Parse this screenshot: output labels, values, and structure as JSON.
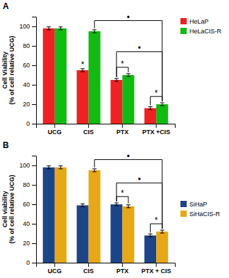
{
  "chart_data": [
    {
      "type": "bar",
      "title": "A",
      "ylabel": "Cell Viability\n(% of cell relative UCG)",
      "categories": [
        "UCG",
        "CIS",
        "PTX",
        "PTX +CIS"
      ],
      "series": [
        {
          "name": "HeLaP",
          "color": "#ee2222",
          "values": [
            98,
            55,
            45,
            16
          ],
          "errors": [
            1.5,
            1.5,
            1.5,
            1.5
          ]
        },
        {
          "name": "HeLaCIS-R",
          "color": "#11bb11",
          "values": [
            98,
            95,
            50,
            20
          ],
          "errors": [
            1.5,
            1.5,
            1.5,
            1.5
          ]
        }
      ],
      "ylim": [
        0,
        110
      ],
      "yticks": [
        0,
        20,
        40,
        60,
        80,
        100
      ],
      "grid": false,
      "legend": "upper right",
      "annotations": [
        {
          "text": "*",
          "y": 57,
          "at": [
            "CIS",
            "HeLaP"
          ]
        },
        {
          "text": "*",
          "y": 58,
          "from": [
            "PTX",
            "HeLaP"
          ],
          "to": [
            "PTX",
            "HeLaCIS-R"
          ]
        },
        {
          "text": "*",
          "y": 28,
          "from": [
            "PTX +CIS",
            "HeLaP"
          ],
          "to": [
            "PTX +CIS",
            "HeLaCIS-R"
          ]
        },
        {
          "text": "•",
          "y": 106,
          "from": [
            "CIS",
            "HeLaCIS-R"
          ],
          "to": [
            "PTX +CIS",
            "HeLaCIS-R"
          ]
        },
        {
          "text": "•",
          "y": 74,
          "from": [
            "PTX",
            "HeLaP"
          ],
          "to": [
            "PTX +CIS",
            "HeLaCIS-R"
          ]
        }
      ]
    },
    {
      "type": "bar",
      "title": "B",
      "ylabel": "Cell viability\n(% of cell relative UCG)",
      "categories": [
        "UCG",
        "CIS",
        "PTX",
        "PTX + CIS"
      ],
      "series": [
        {
          "name": "SiHaP",
          "color": "#1c4587",
          "values": [
            98,
            59,
            60,
            28
          ],
          "errors": [
            1.5,
            1.5,
            1.5,
            1.5
          ]
        },
        {
          "name": "SiHaCIS-R",
          "color": "#e6a817",
          "values": [
            98,
            95,
            58,
            32
          ],
          "errors": [
            1.5,
            1.5,
            1.5,
            1.5
          ]
        }
      ],
      "ylim": [
        0,
        110
      ],
      "yticks": [
        0,
        20,
        40,
        60,
        80,
        100
      ],
      "grid": false,
      "legend": "center right",
      "annotations": [
        {
          "text": "*",
          "y": 68,
          "from": [
            "PTX",
            "SiHaP"
          ],
          "to": [
            "PTX",
            "SiHaCIS-R"
          ]
        },
        {
          "text": "*",
          "y": 40,
          "from": [
            "PTX + CIS",
            "SiHaP"
          ],
          "to": [
            "PTX + CIS",
            "SiHaCIS-R"
          ]
        },
        {
          "text": "•",
          "y": 106,
          "from": [
            "CIS",
            "SiHaCIS-R"
          ],
          "to": [
            "PTX + CIS",
            "SiHaCIS-R"
          ]
        },
        {
          "text": "•",
          "y": 82,
          "from": [
            "PTX",
            "SiHaP"
          ],
          "to": [
            "PTX + CIS",
            "SiHaCIS-R"
          ]
        }
      ]
    }
  ]
}
